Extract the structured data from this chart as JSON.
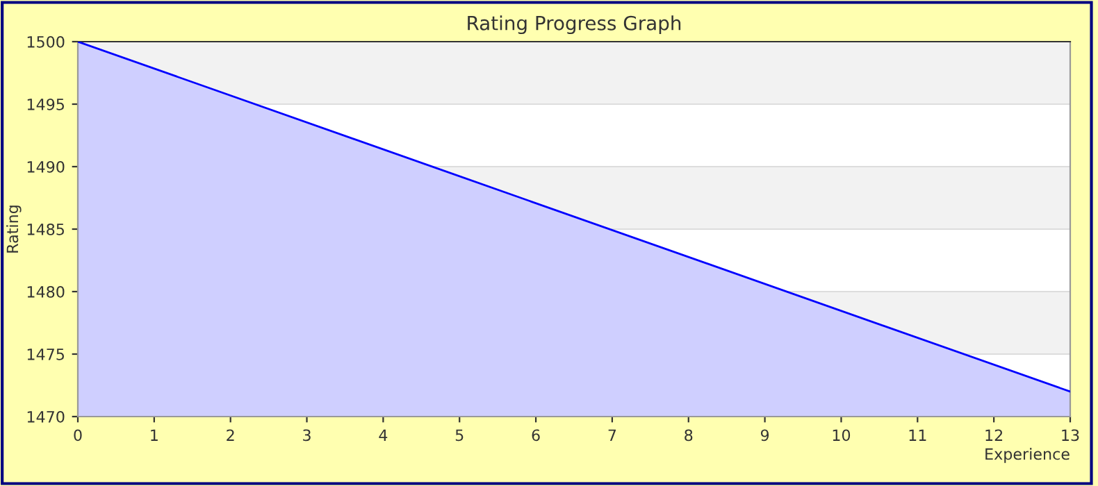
{
  "chart_data": {
    "type": "area",
    "title": "Rating Progress Graph",
    "xlabel": "Experience",
    "ylabel": "Rating",
    "x": [
      0,
      13
    ],
    "series": [
      {
        "color": "#0000ff",
        "values": [
          1500,
          1472
        ]
      }
    ],
    "xlim": [
      0,
      13
    ],
    "xticks": [
      0,
      1,
      2,
      3,
      4,
      5,
      6,
      7,
      8,
      9,
      10,
      11,
      12,
      13
    ],
    "ylim": [
      1470,
      1500
    ],
    "yticks": [
      1470,
      1475,
      1480,
      1485,
      1490,
      1495,
      1500
    ],
    "grid": "y",
    "legend": false
  }
}
